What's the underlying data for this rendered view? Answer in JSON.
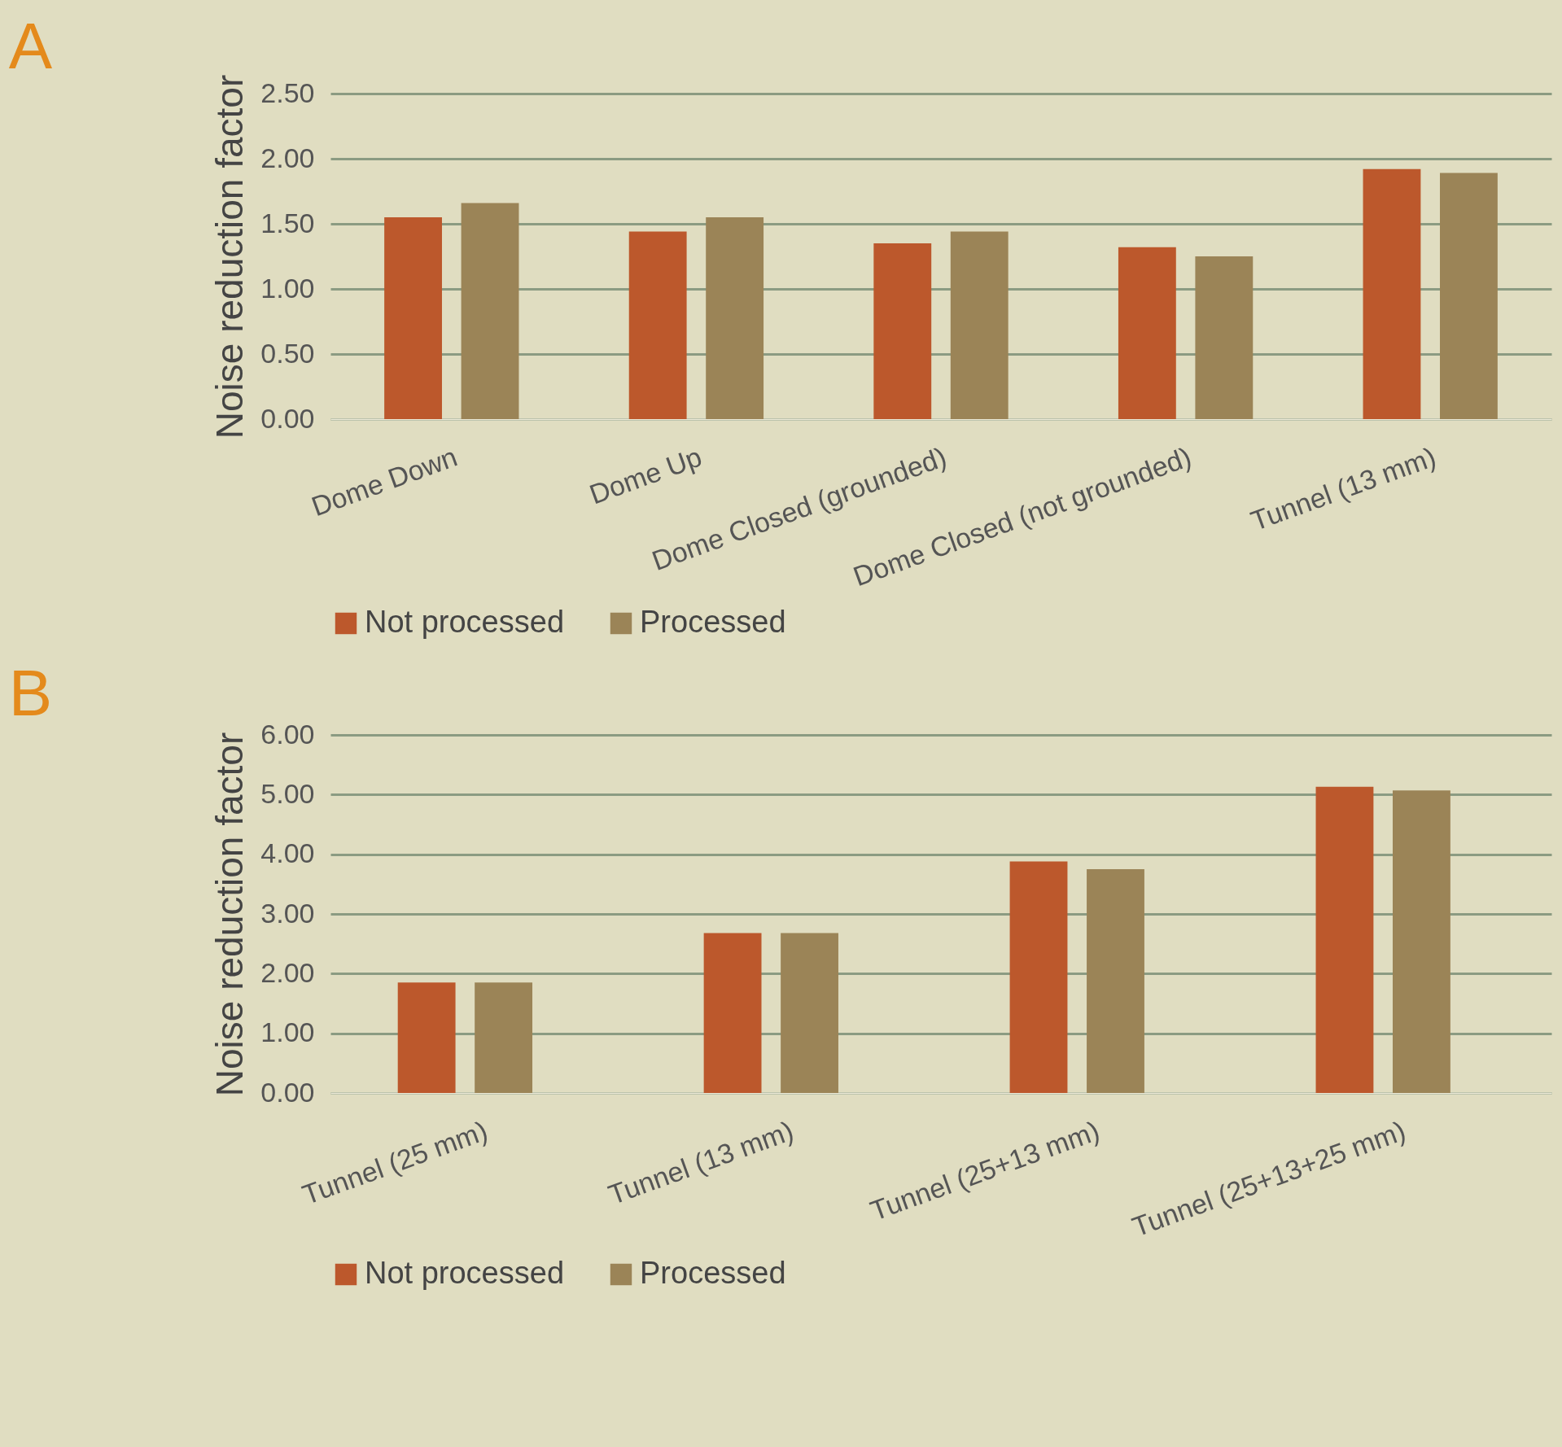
{
  "chart_data": [
    {
      "type": "bar",
      "title": "A",
      "ylabel": "Noise reduction factor",
      "categories": [
        "Dome Down",
        "Dome Up",
        "Dome Closed (grounded)",
        "Dome Closed (not grounded)",
        "Tunnel (13 mm)"
      ],
      "series": [
        {
          "name": "Not processed",
          "color": "#bc582c",
          "values": [
            1.55,
            1.44,
            1.35,
            1.32,
            1.92
          ]
        },
        {
          "name": "Processed",
          "color": "#9b8457",
          "values": [
            1.66,
            1.55,
            1.44,
            1.25,
            1.89
          ]
        }
      ],
      "ylim": [
        0,
        2.5
      ],
      "yticks": [
        {
          "value": 0,
          "label": "0.00"
        },
        {
          "value": 0.5,
          "label": "0.50"
        },
        {
          "value": 1,
          "label": "1.00"
        },
        {
          "value": 1.5,
          "label": "1.50"
        },
        {
          "value": 2,
          "label": "2.00"
        },
        {
          "value": 2.5,
          "label": "2.50"
        }
      ],
      "grid": "y",
      "legend": "bottom"
    },
    {
      "type": "bar",
      "title": "B",
      "ylabel": "Noise reduction factor",
      "categories": [
        "Tunnel (25 mm)",
        "Tunnel (13 mm)",
        "Tunnel (25+13 mm)",
        "Tunnel (25+13+25 mm)"
      ],
      "series": [
        {
          "name": "Not processed",
          "color": "#bc582c",
          "values": [
            1.85,
            2.68,
            3.88,
            5.13
          ]
        },
        {
          "name": "Processed",
          "color": "#9b8457",
          "values": [
            1.85,
            2.68,
            3.75,
            5.07
          ]
        }
      ],
      "ylim": [
        0,
        6
      ],
      "yticks": [
        {
          "value": 0,
          "label": "0.00"
        },
        {
          "value": 1,
          "label": "1.00"
        },
        {
          "value": 2,
          "label": "2.00"
        },
        {
          "value": 3,
          "label": "3.00"
        },
        {
          "value": 4,
          "label": "4.00"
        },
        {
          "value": 5,
          "label": "5.00"
        },
        {
          "value": 6,
          "label": "6.00"
        }
      ],
      "grid": "y",
      "legend": "bottom"
    }
  ]
}
